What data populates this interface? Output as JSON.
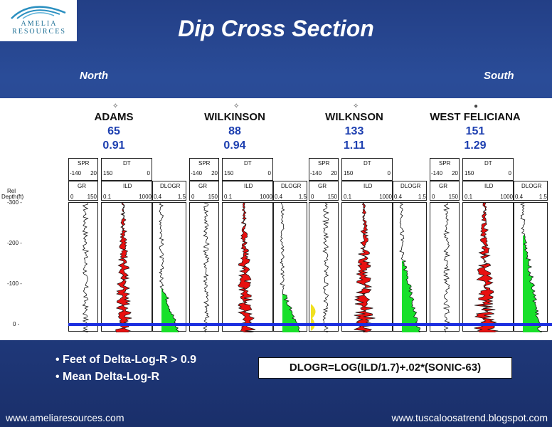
{
  "logo": {
    "line1": "AMELIA",
    "line2": "RESOURCES",
    "icon": "waves-logo-icon"
  },
  "title": "Dip Cross Section",
  "compass": {
    "left": "North",
    "right": "South"
  },
  "depth_axis": {
    "label_top": "Rel",
    "label_bottom": "Depth(ft)",
    "ticks": [
      "-300 -",
      "-200 -",
      "-100 -",
      "0 -"
    ]
  },
  "wells": [
    {
      "name": "ADAMS",
      "number": "65",
      "value": "0.91",
      "symbol": "✧"
    },
    {
      "name": "WILKINSON",
      "number": "88",
      "value": "0.94",
      "symbol": "✧"
    },
    {
      "name": "WILKNSON",
      "number": "133",
      "value": "1.11",
      "symbol": "✧"
    },
    {
      "name": "WEST FELICIANA",
      "number": "151",
      "value": "1.29",
      "symbol": "●"
    }
  ],
  "track_headers": {
    "spr": "SPR",
    "spr_min": "-140",
    "spr_max": "20",
    "gr": "GR",
    "gr_min": "0",
    "gr_max": "150",
    "dt": "DT",
    "dt_min": "150",
    "dt_max": "0",
    "ild": "ILD",
    "ild_min": "0.1",
    "ild_max": "1000",
    "dlogr": "DLOGR",
    "dlogr_min": "0.4",
    "dlogr_max": "1.5"
  },
  "bullets": [
    "• Feet of Delta-Log-R > 0.9",
    "• Mean Delta-Log-R"
  ],
  "formula": "DLOGR=LOG(ILD/1.7)+.02*(SONIC-63)",
  "footer": {
    "left": "www.ameliaresources.com",
    "right": "www.tuscaloosatrend.blogspot.com"
  },
  "colors": {
    "background": "#233f86",
    "ild_fill": "#e81010",
    "dlogr_fill": "#18e02a",
    "gr_fill": "#f0e020",
    "datum": "#1c2ee0",
    "well_number": "#1d3fb0"
  }
}
